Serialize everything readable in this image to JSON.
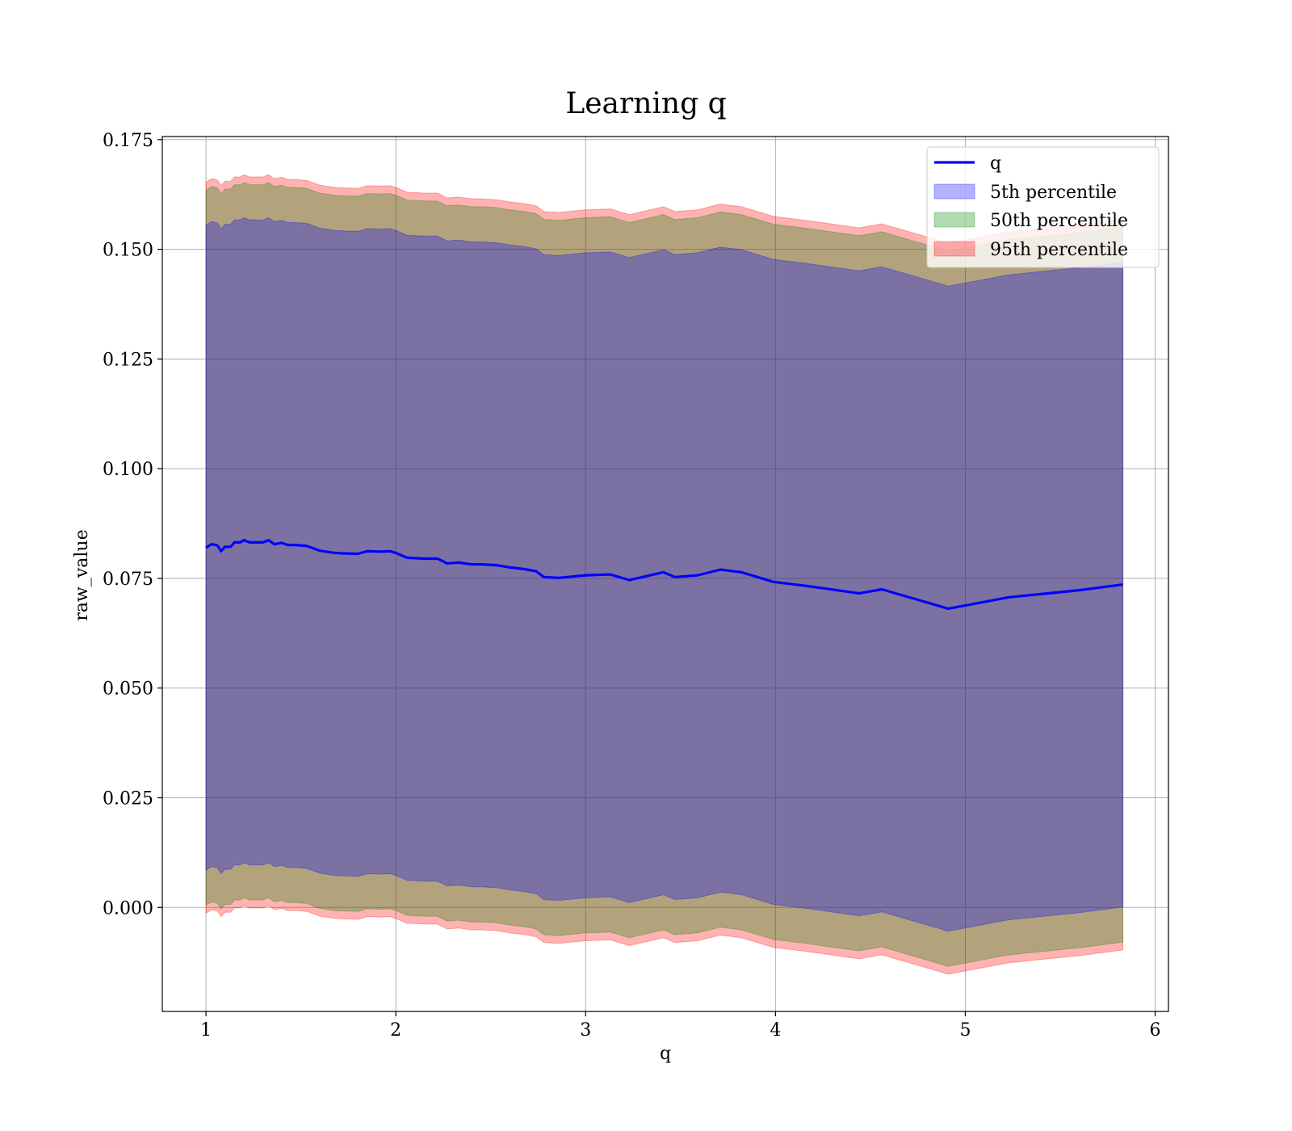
{
  "chart_data": {
    "type": "area",
    "title": "Learning q",
    "xlabel": "q",
    "ylabel": "raw_value",
    "xlim": [
      0.77,
      6.07
    ],
    "ylim": [
      -0.0237,
      0.1757
    ],
    "grid": true,
    "legend_position": "top-right",
    "x_ticks": [
      1,
      2,
      3,
      4,
      5,
      6
    ],
    "x_tick_labels": [
      "1",
      "2",
      "3",
      "4",
      "5",
      "6"
    ],
    "y_ticks": [
      0.0,
      0.025,
      0.05,
      0.075,
      0.1,
      0.125,
      0.15,
      0.175
    ],
    "y_tick_labels": [
      "0.000",
      "0.025",
      "0.050",
      "0.075",
      "0.100",
      "0.125",
      "0.150",
      "0.175"
    ],
    "x": [
      1.0,
      1.03,
      1.06,
      1.08,
      1.1,
      1.13,
      1.15,
      1.18,
      1.2,
      1.23,
      1.26,
      1.3,
      1.33,
      1.36,
      1.4,
      1.43,
      1.47,
      1.53,
      1.6,
      1.68,
      1.72,
      1.8,
      1.85,
      1.92,
      1.97,
      2.0,
      2.06,
      2.15,
      2.22,
      2.27,
      2.33,
      2.4,
      2.45,
      2.53,
      2.6,
      2.68,
      2.74,
      2.78,
      2.86,
      2.95,
      3.0,
      3.13,
      3.23,
      3.41,
      3.47,
      3.59,
      3.71,
      3.82,
      3.99,
      4.16,
      4.44,
      4.56,
      4.91,
      5.23,
      5.6,
      5.83
    ],
    "series": [
      {
        "name": "q",
        "values": [
          0.082,
          0.0828,
          0.0825,
          0.0812,
          0.0822,
          0.0822,
          0.0832,
          0.0832,
          0.0837,
          0.0832,
          0.0832,
          0.0832,
          0.0837,
          0.0828,
          0.0831,
          0.0826,
          0.0826,
          0.0824,
          0.0813,
          0.0808,
          0.0807,
          0.0806,
          0.0812,
          0.0811,
          0.0812,
          0.0808,
          0.0797,
          0.0795,
          0.0795,
          0.0784,
          0.0786,
          0.0782,
          0.0782,
          0.078,
          0.0775,
          0.0771,
          0.0766,
          0.0753,
          0.0751,
          0.0755,
          0.0757,
          0.0759,
          0.0746,
          0.0764,
          0.0753,
          0.0757,
          0.077,
          0.0764,
          0.0742,
          0.0733,
          0.0716,
          0.0725,
          0.0681,
          0.0707,
          0.0723,
          0.0736
        ]
      },
      {
        "name": "5th percentile",
        "color": "#0000ff",
        "offset_low": -0.0735,
        "offset_high": 0.0735
      },
      {
        "name": "50th percentile",
        "color": "#008000",
        "offset_low": -0.0815,
        "offset_high": 0.0815
      },
      {
        "name": "95th percentile",
        "color": "#ff0000",
        "offset_low": -0.0833,
        "offset_high": 0.0833
      }
    ]
  }
}
